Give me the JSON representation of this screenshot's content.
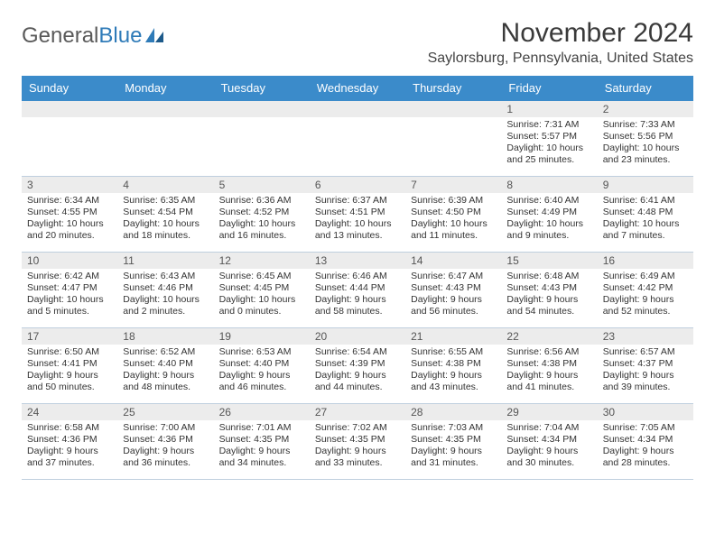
{
  "logo": {
    "text1": "General",
    "text2": "Blue"
  },
  "title": "November 2024",
  "location": "Saylorsburg, Pennsylvania, United States",
  "colors": {
    "header_bg": "#3b8bca",
    "header_text": "#ffffff",
    "daynum_bg": "#ececec",
    "cell_border": "#bfcfde",
    "logo_gray": "#5a5a5a",
    "logo_blue": "#2f7bb8"
  },
  "weekdays": [
    "Sunday",
    "Monday",
    "Tuesday",
    "Wednesday",
    "Thursday",
    "Friday",
    "Saturday"
  ],
  "weeks": [
    [
      null,
      null,
      null,
      null,
      null,
      {
        "n": "1",
        "sunrise": "Sunrise: 7:31 AM",
        "sunset": "Sunset: 5:57 PM",
        "daylight": "Daylight: 10 hours and 25 minutes."
      },
      {
        "n": "2",
        "sunrise": "Sunrise: 7:33 AM",
        "sunset": "Sunset: 5:56 PM",
        "daylight": "Daylight: 10 hours and 23 minutes."
      }
    ],
    [
      {
        "n": "3",
        "sunrise": "Sunrise: 6:34 AM",
        "sunset": "Sunset: 4:55 PM",
        "daylight": "Daylight: 10 hours and 20 minutes."
      },
      {
        "n": "4",
        "sunrise": "Sunrise: 6:35 AM",
        "sunset": "Sunset: 4:54 PM",
        "daylight": "Daylight: 10 hours and 18 minutes."
      },
      {
        "n": "5",
        "sunrise": "Sunrise: 6:36 AM",
        "sunset": "Sunset: 4:52 PM",
        "daylight": "Daylight: 10 hours and 16 minutes."
      },
      {
        "n": "6",
        "sunrise": "Sunrise: 6:37 AM",
        "sunset": "Sunset: 4:51 PM",
        "daylight": "Daylight: 10 hours and 13 minutes."
      },
      {
        "n": "7",
        "sunrise": "Sunrise: 6:39 AM",
        "sunset": "Sunset: 4:50 PM",
        "daylight": "Daylight: 10 hours and 11 minutes."
      },
      {
        "n": "8",
        "sunrise": "Sunrise: 6:40 AM",
        "sunset": "Sunset: 4:49 PM",
        "daylight": "Daylight: 10 hours and 9 minutes."
      },
      {
        "n": "9",
        "sunrise": "Sunrise: 6:41 AM",
        "sunset": "Sunset: 4:48 PM",
        "daylight": "Daylight: 10 hours and 7 minutes."
      }
    ],
    [
      {
        "n": "10",
        "sunrise": "Sunrise: 6:42 AM",
        "sunset": "Sunset: 4:47 PM",
        "daylight": "Daylight: 10 hours and 5 minutes."
      },
      {
        "n": "11",
        "sunrise": "Sunrise: 6:43 AM",
        "sunset": "Sunset: 4:46 PM",
        "daylight": "Daylight: 10 hours and 2 minutes."
      },
      {
        "n": "12",
        "sunrise": "Sunrise: 6:45 AM",
        "sunset": "Sunset: 4:45 PM",
        "daylight": "Daylight: 10 hours and 0 minutes."
      },
      {
        "n": "13",
        "sunrise": "Sunrise: 6:46 AM",
        "sunset": "Sunset: 4:44 PM",
        "daylight": "Daylight: 9 hours and 58 minutes."
      },
      {
        "n": "14",
        "sunrise": "Sunrise: 6:47 AM",
        "sunset": "Sunset: 4:43 PM",
        "daylight": "Daylight: 9 hours and 56 minutes."
      },
      {
        "n": "15",
        "sunrise": "Sunrise: 6:48 AM",
        "sunset": "Sunset: 4:43 PM",
        "daylight": "Daylight: 9 hours and 54 minutes."
      },
      {
        "n": "16",
        "sunrise": "Sunrise: 6:49 AM",
        "sunset": "Sunset: 4:42 PM",
        "daylight": "Daylight: 9 hours and 52 minutes."
      }
    ],
    [
      {
        "n": "17",
        "sunrise": "Sunrise: 6:50 AM",
        "sunset": "Sunset: 4:41 PM",
        "daylight": "Daylight: 9 hours and 50 minutes."
      },
      {
        "n": "18",
        "sunrise": "Sunrise: 6:52 AM",
        "sunset": "Sunset: 4:40 PM",
        "daylight": "Daylight: 9 hours and 48 minutes."
      },
      {
        "n": "19",
        "sunrise": "Sunrise: 6:53 AM",
        "sunset": "Sunset: 4:40 PM",
        "daylight": "Daylight: 9 hours and 46 minutes."
      },
      {
        "n": "20",
        "sunrise": "Sunrise: 6:54 AM",
        "sunset": "Sunset: 4:39 PM",
        "daylight": "Daylight: 9 hours and 44 minutes."
      },
      {
        "n": "21",
        "sunrise": "Sunrise: 6:55 AM",
        "sunset": "Sunset: 4:38 PM",
        "daylight": "Daylight: 9 hours and 43 minutes."
      },
      {
        "n": "22",
        "sunrise": "Sunrise: 6:56 AM",
        "sunset": "Sunset: 4:38 PM",
        "daylight": "Daylight: 9 hours and 41 minutes."
      },
      {
        "n": "23",
        "sunrise": "Sunrise: 6:57 AM",
        "sunset": "Sunset: 4:37 PM",
        "daylight": "Daylight: 9 hours and 39 minutes."
      }
    ],
    [
      {
        "n": "24",
        "sunrise": "Sunrise: 6:58 AM",
        "sunset": "Sunset: 4:36 PM",
        "daylight": "Daylight: 9 hours and 37 minutes."
      },
      {
        "n": "25",
        "sunrise": "Sunrise: 7:00 AM",
        "sunset": "Sunset: 4:36 PM",
        "daylight": "Daylight: 9 hours and 36 minutes."
      },
      {
        "n": "26",
        "sunrise": "Sunrise: 7:01 AM",
        "sunset": "Sunset: 4:35 PM",
        "daylight": "Daylight: 9 hours and 34 minutes."
      },
      {
        "n": "27",
        "sunrise": "Sunrise: 7:02 AM",
        "sunset": "Sunset: 4:35 PM",
        "daylight": "Daylight: 9 hours and 33 minutes."
      },
      {
        "n": "28",
        "sunrise": "Sunrise: 7:03 AM",
        "sunset": "Sunset: 4:35 PM",
        "daylight": "Daylight: 9 hours and 31 minutes."
      },
      {
        "n": "29",
        "sunrise": "Sunrise: 7:04 AM",
        "sunset": "Sunset: 4:34 PM",
        "daylight": "Daylight: 9 hours and 30 minutes."
      },
      {
        "n": "30",
        "sunrise": "Sunrise: 7:05 AM",
        "sunset": "Sunset: 4:34 PM",
        "daylight": "Daylight: 9 hours and 28 minutes."
      }
    ]
  ]
}
